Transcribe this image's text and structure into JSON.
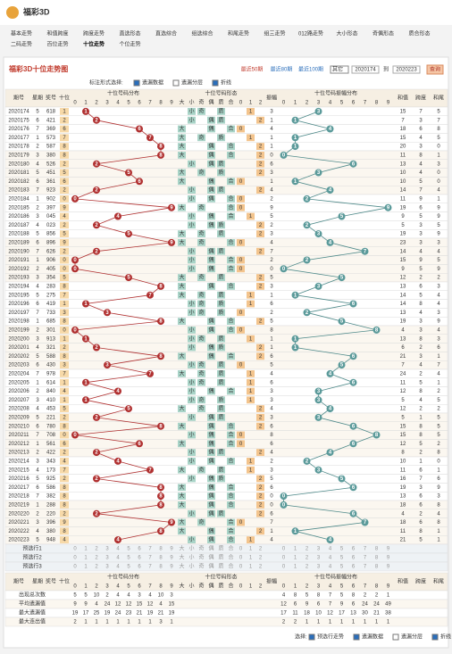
{
  "header": {
    "logo": "福彩3D"
  },
  "nav": [
    [
      "基本走势",
      "和值跨度",
      "跨度走势",
      "直选形态",
      "直选综合",
      "组选综合",
      "和尾走势",
      "组三走势",
      "012路走势",
      "大小形态",
      "奇偶形态",
      "质合形态"
    ],
    [
      "二码走势",
      "百位走势",
      "十位走势",
      "个位走势"
    ]
  ],
  "nav_active": "十位走势",
  "panel": {
    "title": "福彩3D十位走势图",
    "recent": [
      "最近50期",
      "最近80期",
      "最近100期"
    ],
    "select": "其它",
    "from": "2020174",
    "to_label": "到",
    "to": "2020223",
    "query": "查询",
    "options_label": "标注形式选择:",
    "options": [
      {
        "label": "遗漏数据",
        "checked": true
      },
      {
        "label": "遗漏分层",
        "checked": false
      },
      {
        "label": "折线",
        "checked": true
      }
    ]
  },
  "table": {
    "heads": {
      "period": "期号",
      "week": "星期",
      "number": "奖号",
      "ten": "十位",
      "dist": "十位号码分布",
      "shape": "十位号码形态",
      "amp": "振幅",
      "amp_dist": "十位号码振幅分布",
      "sum": "和值",
      "span": "跨度",
      "tail": "和尾"
    },
    "digits": [
      0,
      1,
      2,
      3,
      4,
      5,
      6,
      7,
      8,
      9
    ],
    "shape_heads": [
      "大",
      "小",
      "奇",
      "偶",
      "质",
      "合",
      "0",
      "1",
      "2"
    ],
    "rows": [
      {
        "period": 2020174,
        "week": 5,
        "number": "618",
        "ten": 1,
        "amp": 3,
        "sum": 15,
        "span": 7,
        "tail": 5
      },
      {
        "period": 2020175,
        "week": 6,
        "number": "421",
        "ten": 2,
        "amp": 1,
        "sum": 7,
        "span": 3,
        "tail": 7
      },
      {
        "period": 2020176,
        "week": 7,
        "number": "369",
        "ten": 6,
        "amp": 4,
        "sum": 18,
        "span": 6,
        "tail": 8
      },
      {
        "period": 2020177,
        "week": 1,
        "number": "573",
        "ten": 7,
        "amp": 1,
        "sum": 15,
        "span": 4,
        "tail": 5
      },
      {
        "period": 2020178,
        "week": 2,
        "number": "587",
        "ten": 8,
        "amp": 1,
        "sum": 20,
        "span": 3,
        "tail": 0
      },
      {
        "period": 2020179,
        "week": 3,
        "number": "380",
        "ten": 8,
        "amp": 0,
        "sum": 11,
        "span": 8,
        "tail": 1
      },
      {
        "period": 2020180,
        "week": 4,
        "number": "526",
        "ten": 2,
        "amp": 6,
        "sum": 13,
        "span": 4,
        "tail": 3
      },
      {
        "period": 2020181,
        "week": 5,
        "number": "451",
        "ten": 5,
        "amp": 3,
        "sum": 10,
        "span": 4,
        "tail": 0
      },
      {
        "period": 2020182,
        "week": 6,
        "number": "361",
        "ten": 6,
        "amp": 1,
        "sum": 10,
        "span": 5,
        "tail": 0
      },
      {
        "period": 2020183,
        "week": 7,
        "number": "923",
        "ten": 2,
        "amp": 4,
        "sum": 14,
        "span": 7,
        "tail": 4
      },
      {
        "period": 2020184,
        "week": 1,
        "number": "902",
        "ten": 0,
        "amp": 2,
        "sum": 11,
        "span": 9,
        "tail": 1
      },
      {
        "period": 2020185,
        "week": 2,
        "number": "397",
        "ten": 9,
        "amp": 9,
        "sum": 19,
        "span": 6,
        "tail": 9
      },
      {
        "period": 2020186,
        "week": 3,
        "number": "045",
        "ten": 4,
        "amp": 5,
        "sum": 9,
        "span": 5,
        "tail": 9
      },
      {
        "period": 2020187,
        "week": 4,
        "number": "023",
        "ten": 2,
        "amp": 2,
        "sum": 5,
        "span": 3,
        "tail": 5
      },
      {
        "period": 2020188,
        "week": 5,
        "number": "856",
        "ten": 5,
        "amp": 3,
        "sum": 19,
        "span": 3,
        "tail": 9
      },
      {
        "period": 2020189,
        "week": 6,
        "number": "896",
        "ten": 9,
        "amp": 4,
        "sum": 23,
        "span": 3,
        "tail": 3
      },
      {
        "period": 2020190,
        "week": 7,
        "number": "626",
        "ten": 2,
        "amp": 7,
        "sum": 14,
        "span": 4,
        "tail": 4
      },
      {
        "period": 2020191,
        "week": 1,
        "number": "906",
        "ten": 0,
        "amp": 2,
        "sum": 15,
        "span": 9,
        "tail": 5
      },
      {
        "period": 2020192,
        "week": 2,
        "number": "405",
        "ten": 0,
        "amp": 0,
        "sum": 9,
        "span": 5,
        "tail": 9
      },
      {
        "period": 2020193,
        "week": 3,
        "number": "354",
        "ten": 5,
        "amp": 5,
        "sum": 12,
        "span": 2,
        "tail": 2
      },
      {
        "period": 2020194,
        "week": 4,
        "number": "283",
        "ten": 8,
        "amp": 3,
        "sum": 13,
        "span": 6,
        "tail": 3
      },
      {
        "period": 2020195,
        "week": 5,
        "number": "275",
        "ten": 7,
        "amp": 1,
        "sum": 14,
        "span": 5,
        "tail": 4
      },
      {
        "period": 2020196,
        "week": 6,
        "number": "419",
        "ten": 1,
        "amp": 6,
        "sum": 14,
        "span": 8,
        "tail": 4
      },
      {
        "period": 2020197,
        "week": 7,
        "number": "733",
        "ten": 3,
        "amp": 2,
        "sum": 13,
        "span": 4,
        "tail": 3
      },
      {
        "period": 2020198,
        "week": 1,
        "number": "685",
        "ten": 8,
        "amp": 5,
        "sum": 19,
        "span": 3,
        "tail": 9
      },
      {
        "period": 2020199,
        "week": 2,
        "number": "301",
        "ten": 0,
        "amp": 8,
        "sum": 4,
        "span": 3,
        "tail": 4
      },
      {
        "period": 2020200,
        "week": 3,
        "number": "913",
        "ten": 1,
        "amp": 1,
        "sum": 13,
        "span": 8,
        "tail": 3
      },
      {
        "period": 2020201,
        "week": 4,
        "number": "321",
        "ten": 2,
        "amp": 1,
        "sum": 6,
        "span": 2,
        "tail": 6
      },
      {
        "period": 2020202,
        "week": 5,
        "number": "588",
        "ten": 8,
        "amp": 6,
        "sum": 21,
        "span": 3,
        "tail": 1
      },
      {
        "period": 2020203,
        "week": 6,
        "number": "430",
        "ten": 3,
        "amp": 5,
        "sum": 7,
        "span": 4,
        "tail": 7
      },
      {
        "period": 2020204,
        "week": 7,
        "number": "978",
        "ten": 7,
        "amp": 4,
        "sum": 24,
        "span": 2,
        "tail": 4
      },
      {
        "period": 2020205,
        "week": 1,
        "number": "614",
        "ten": 1,
        "amp": 6,
        "sum": 11,
        "span": 5,
        "tail": 1
      },
      {
        "period": 2020206,
        "week": 2,
        "number": "840",
        "ten": 4,
        "amp": 3,
        "sum": 12,
        "span": 8,
        "tail": 2
      },
      {
        "period": 2020207,
        "week": 3,
        "number": "410",
        "ten": 1,
        "amp": 3,
        "sum": 5,
        "span": 4,
        "tail": 5
      },
      {
        "period": 2020208,
        "week": 4,
        "number": "453",
        "ten": 5,
        "amp": 4,
        "sum": 12,
        "span": 2,
        "tail": 2
      },
      {
        "period": 2020209,
        "week": 5,
        "number": "221",
        "ten": 2,
        "amp": 3,
        "sum": 5,
        "span": 1,
        "tail": 5
      },
      {
        "period": 2020210,
        "week": 6,
        "number": "780",
        "ten": 8,
        "amp": 6,
        "sum": 15,
        "span": 8,
        "tail": 5
      },
      {
        "period": 2020211,
        "week": 7,
        "number": "708",
        "ten": 0,
        "amp": 8,
        "sum": 15,
        "span": 8,
        "tail": 5
      },
      {
        "period": 2020212,
        "week": 1,
        "number": "561",
        "ten": 6,
        "amp": 6,
        "sum": 12,
        "span": 5,
        "tail": 2
      },
      {
        "period": 2020213,
        "week": 2,
        "number": "422",
        "ten": 2,
        "amp": 4,
        "sum": 8,
        "span": 2,
        "tail": 8
      },
      {
        "period": 2020214,
        "week": 3,
        "number": "343",
        "ten": 4,
        "amp": 2,
        "sum": 10,
        "span": 1,
        "tail": 0
      },
      {
        "period": 2020215,
        "week": 4,
        "number": "173",
        "ten": 7,
        "amp": 3,
        "sum": 11,
        "span": 6,
        "tail": 1
      },
      {
        "period": 2020216,
        "week": 5,
        "number": "925",
        "ten": 2,
        "amp": 5,
        "sum": 16,
        "span": 7,
        "tail": 6
      },
      {
        "period": 2020217,
        "week": 6,
        "number": "586",
        "ten": 8,
        "amp": 6,
        "sum": 19,
        "span": 3,
        "tail": 9
      },
      {
        "period": 2020218,
        "week": 7,
        "number": "382",
        "ten": 8,
        "amp": 0,
        "sum": 13,
        "span": 6,
        "tail": 3
      },
      {
        "period": 2020219,
        "week": 1,
        "number": "288",
        "ten": 8,
        "amp": 0,
        "sum": 18,
        "span": 6,
        "tail": 8
      },
      {
        "period": 2020220,
        "week": 2,
        "number": "220",
        "ten": 2,
        "amp": 6,
        "sum": 4,
        "span": 2,
        "tail": 4
      },
      {
        "period": 2020221,
        "week": 3,
        "number": "396",
        "ten": 9,
        "amp": 7,
        "sum": 18,
        "span": 6,
        "tail": 8
      },
      {
        "period": 2020222,
        "week": 4,
        "number": "380",
        "ten": 8,
        "amp": 1,
        "sum": 11,
        "span": 8,
        "tail": 1
      },
      {
        "period": 2020223,
        "week": 5,
        "number": "948",
        "ten": 4,
        "amp": 4,
        "sum": 21,
        "span": 5,
        "tail": 1
      }
    ],
    "preselect": [
      "预选行1",
      "预选行2",
      "预选行3"
    ],
    "stats": [
      {
        "label": "出现总次数",
        "dist": [
          5,
          5,
          10,
          2,
          4,
          4,
          3,
          4,
          10,
          3
        ],
        "amp": [
          4,
          8,
          5,
          8,
          7,
          5,
          8,
          2,
          2,
          1
        ]
      },
      {
        "label": "平均遗漏值",
        "dist": [
          9,
          9,
          4,
          24,
          12,
          12,
          15,
          12,
          4,
          15
        ],
        "amp": [
          12,
          6,
          9,
          6,
          7,
          9,
          6,
          24,
          24,
          49
        ]
      },
      {
        "label": "最大遗漏值",
        "dist": [
          19,
          17,
          25,
          19,
          24,
          23,
          21,
          19,
          21,
          19
        ],
        "amp": [
          17,
          11,
          18,
          10,
          12,
          17,
          13,
          30,
          21,
          38
        ]
      },
      {
        "label": "最大连出值",
        "dist": [
          2,
          1,
          1,
          1,
          1,
          1,
          1,
          1,
          3,
          1
        ],
        "amp": [
          2,
          2,
          1,
          1,
          1,
          1,
          1,
          1,
          1,
          1
        ]
      }
    ]
  },
  "footer": {
    "label": "选择:",
    "options": [
      {
        "label": "预选行走势",
        "checked": true
      },
      {
        "label": "遗漏数据",
        "checked": true
      },
      {
        "label": "遗漏分层",
        "checked": false
      },
      {
        "label": "折线",
        "checked": true
      }
    ]
  }
}
